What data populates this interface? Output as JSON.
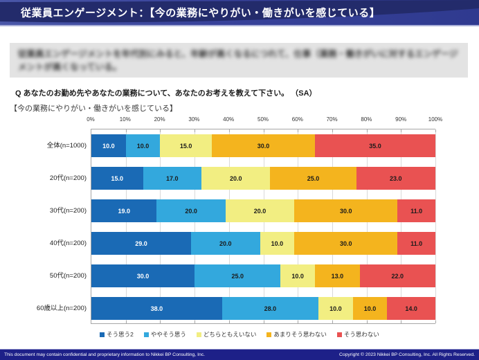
{
  "header": {
    "title": "従業員エンゲージメント：【今の業務にやりがい・働きがいを感じている】"
  },
  "summary": {
    "blurred": true,
    "text": "従業員エンゲージメントを年代別にみると、年齢が高くなるにつれて、仕事（業務・働きがいに対するエンゲージメントが高くなっている。"
  },
  "question": "Q あなたのお勤め先やあなたの業務について、あなたのお考えを教えて下さい。 （SA）",
  "section_label": "【今の業務にやりがい・働きがいを感じている】",
  "chart_data": {
    "type": "bar",
    "stacked": true,
    "orientation": "horizontal",
    "grid": true,
    "legend_position": "bottom",
    "xlim": [
      0,
      100
    ],
    "x_ticks": [
      "0%",
      "10%",
      "20%",
      "30%",
      "40%",
      "50%",
      "60%",
      "70%",
      "80%",
      "90%",
      "100%"
    ],
    "categories": [
      "全体(n=1000)",
      "20代(n=200)",
      "30代(n=200)",
      "40代(n=200)",
      "50代(n=200)",
      "60歳以上(n=200)"
    ],
    "series": [
      {
        "name": "そう思う2",
        "color": "#1a6ab5",
        "value_label_color": "#ffffff",
        "values": [
          10.0,
          15.0,
          19.0,
          29.0,
          30.0,
          38.0
        ]
      },
      {
        "name": "ややそう思う",
        "color": "#33a8dd",
        "value_label_color": "#1a1a1a",
        "values": [
          10.0,
          17.0,
          20.0,
          20.0,
          25.0,
          28.0
        ]
      },
      {
        "name": "どちらともえいない",
        "color": "#f2ee82",
        "value_label_color": "#1a1a1a",
        "values": [
          15.0,
          20.0,
          20.0,
          10.0,
          10.0,
          10.0
        ]
      },
      {
        "name": "あまりそう思わない",
        "color": "#f4b41e",
        "value_label_color": "#1a1a1a",
        "values": [
          30.0,
          25.0,
          30.0,
          30.0,
          13.0,
          10.0
        ]
      },
      {
        "name": "そう思わない",
        "color": "#e95252",
        "value_label_color": "#1a1a1a",
        "values": [
          35.0,
          23.0,
          11.0,
          11.0,
          22.0,
          14.0
        ]
      }
    ],
    "value_decimals": 1
  },
  "theme": {
    "header_dark_navy": "#232b6b",
    "header_indigo": "#2f3a8f",
    "header_slate": "#4a57a8",
    "header_border": "#aab0d8",
    "footer_navy": "#1d2088",
    "summary_bg": "#e3e3e3",
    "gridline": "#d9d9d9",
    "axis_line": "#a6a6a6"
  },
  "footer": {
    "left": "This document may contain confidential and proprietary information to Nikkei BP Consulting, Inc.",
    "right": "Copyright © 2023 Nikkei BP Consulting, Inc. All Rights Reserved."
  }
}
